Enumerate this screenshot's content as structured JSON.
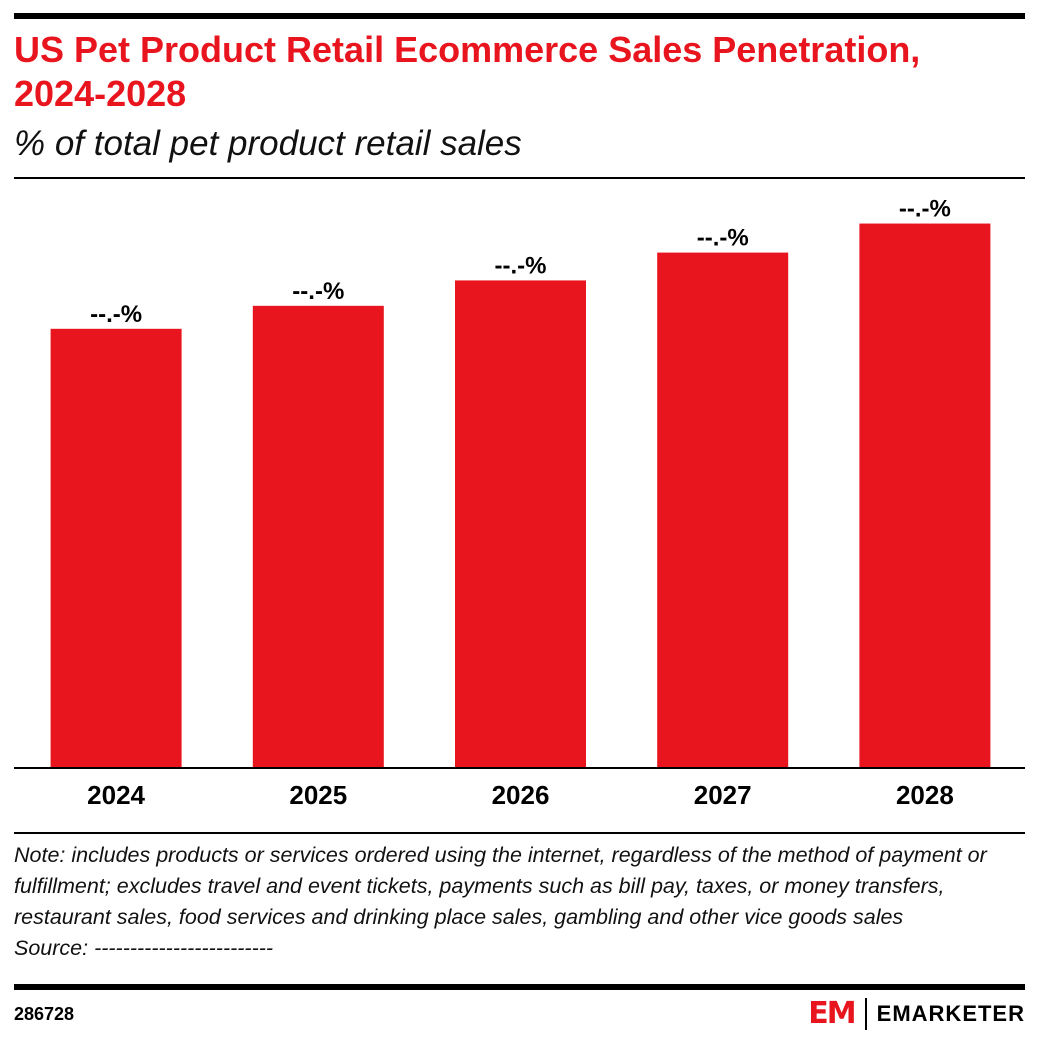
{
  "title": "US Pet Product Retail Ecommerce Sales Penetration, 2024-2028",
  "subtitle": "% of total pet product retail sales",
  "chart_data": {
    "type": "bar",
    "categories": [
      "2024",
      "2025",
      "2026",
      "2027",
      "2028"
    ],
    "values": [
      36.3,
      38.2,
      40.3,
      42.6,
      45.0
    ],
    "data_labels": [
      "--.-%",
      "--.-%",
      "--.-%",
      "--.-%",
      "--.-%"
    ],
    "title": "US Pet Product Retail Ecommerce Sales Penetration, 2024-2028",
    "subtitle": "% of total pet product retail sales",
    "xlabel": "",
    "ylabel": "",
    "ylim": [
      0,
      48.6
    ],
    "grid": false,
    "bar_color": "#e8141e"
  },
  "note": "Note: includes products or services ordered using the internet, regardless of the method of payment or fulfillment; excludes travel and event tickets, payments such as bill pay, taxes, or money transfers, restaurant sales, food services and drinking place sales, gambling and other vice goods sales",
  "source": "Source: -------------------------",
  "chart_id": "286728",
  "logo": {
    "mark": "EM",
    "text": "EMARKETER"
  }
}
